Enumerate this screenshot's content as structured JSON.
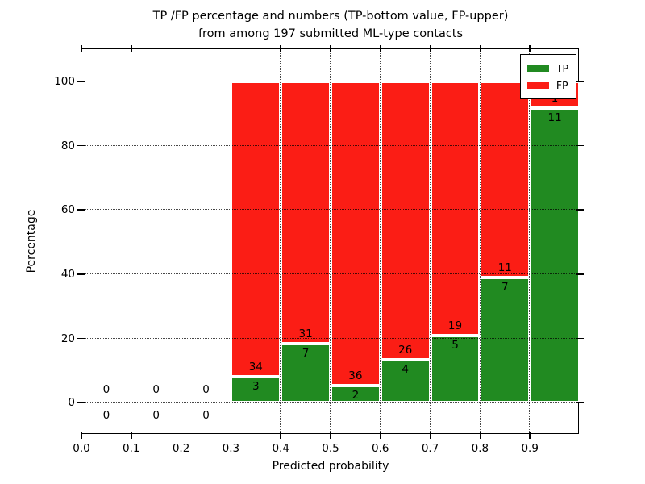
{
  "chart_data": {
    "type": "bar",
    "stacked": true,
    "normalized_to_percent": true,
    "title": "TP /FP percentage and numbers (TP-bottom value, FP-upper)\nfrom among 197 submitted ML-type contacts",
    "title_lines": [
      "TP /FP percentage and numbers (TP-bottom value, FP-upper)",
      "from among 197 submitted ML-type contacts"
    ],
    "total_contacts": 197,
    "xlabel": "Predicted probability",
    "ylabel": "Percentage",
    "xlim": [
      0.0,
      1.0
    ],
    "ylim": [
      -10,
      110
    ],
    "bar_width": 0.1,
    "grid": true,
    "categories": [
      "0.0-0.1",
      "0.1-0.2",
      "0.2-0.3",
      "0.3-0.4",
      "0.4-0.5",
      "0.5-0.6",
      "0.6-0.7",
      "0.7-0.8",
      "0.8-0.9",
      "0.9-1.0"
    ],
    "bin_starts": [
      0.0,
      0.1,
      0.2,
      0.3,
      0.4,
      0.5,
      0.6,
      0.7,
      0.8,
      0.9
    ],
    "x_tick_values": [
      0.0,
      0.1,
      0.2,
      0.3,
      0.4,
      0.5,
      0.6,
      0.7,
      0.8,
      0.9
    ],
    "x_tick_labels": [
      "0.0",
      "0.1",
      "0.2",
      "0.3",
      "0.4",
      "0.5",
      "0.6",
      "0.7",
      "0.8",
      "0.9"
    ],
    "y_tick_values": [
      0,
      20,
      40,
      60,
      80,
      100
    ],
    "y_tick_labels": [
      "0",
      "20",
      "40",
      "60",
      "80",
      "100"
    ],
    "series": [
      {
        "name": "TP",
        "color": "#218a21",
        "values": [
          0,
          0,
          0,
          3,
          7,
          2,
          4,
          5,
          7,
          11
        ]
      },
      {
        "name": "FP",
        "color": "#fb1d15",
        "values": [
          0,
          0,
          0,
          34,
          31,
          36,
          26,
          19,
          11,
          1
        ]
      }
    ],
    "tp_percent_of_bin": [
      0,
      0,
      0,
      8.11,
      18.42,
      5.26,
      13.33,
      20.83,
      38.89,
      91.67
    ],
    "legend": {
      "position": "upper right",
      "entries": [
        "TP",
        "FP"
      ]
    },
    "annotation_rule": "FP count printed above the TP/FP boundary, TP count printed below it"
  }
}
